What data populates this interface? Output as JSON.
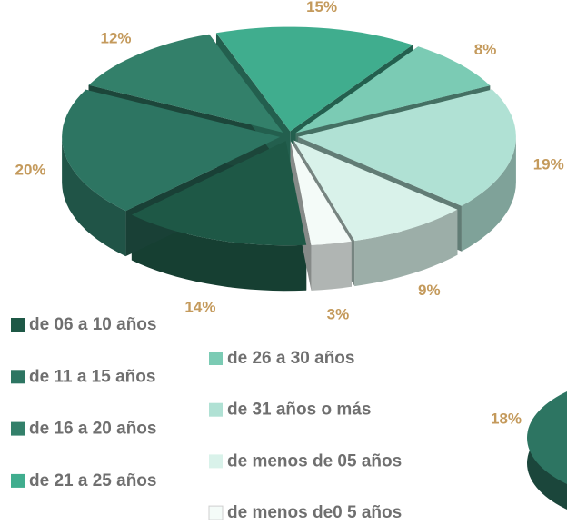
{
  "chart_data": [
    {
      "type": "pie",
      "categories": [
        "de 06 a 10 años",
        "de 11 a 15 años",
        "de 16 a 20 años",
        "de 21 a 25 años",
        "de 26 a 30 años",
        "de 31 años o más",
        "de menos de 05 años",
        "de menos de0 5 años"
      ],
      "values": [
        14,
        20,
        12,
        15,
        8,
        19,
        9,
        3
      ],
      "value_labels": [
        "14%",
        "20%",
        "12%",
        "15%",
        "8%",
        "19%",
        "9%",
        "3%"
      ],
      "colors": [
        "#1e5846",
        "#2d7562",
        "#33806a",
        "#40ad8e",
        "#7bcbb4",
        "#b0e1d4",
        "#d9f2ea",
        "#f4fbf8"
      ]
    },
    {
      "type": "pie",
      "values": [
        18
      ],
      "value_labels": [
        "18%"
      ],
      "colors": [
        "#2d7562"
      ]
    }
  ]
}
